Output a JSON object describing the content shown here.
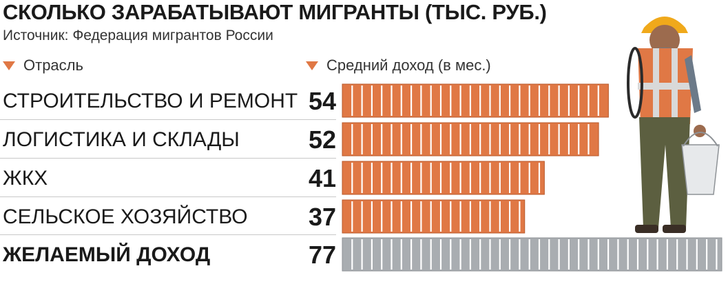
{
  "title": "СКОЛЬКО ЗАРАБАТЫВАЮТ МИГРАНТЫ (ТЫС. РУБ.)",
  "subtitle": "Источник: Федерация мигрантов России",
  "headers": {
    "category": "Отрасль",
    "value": "Средний доход (в мес.)"
  },
  "colors": {
    "bar": "#e07845",
    "bar_highlight": "#a9adb1",
    "accent": "#e07845"
  },
  "icons": {
    "header_marker": "triangle-down-icon",
    "illustration": "construction-worker-icon"
  },
  "chart_data": {
    "type": "bar",
    "orientation": "horizontal",
    "title": "СКОЛЬКО ЗАРАБАТЫВАЮТ МИГРАНТЫ (ТЫС. РУБ.)",
    "categories": [
      "СТРОИТЕЛЬСТВО И РЕМОНТ",
      "ЛОГИСТИКА И СКЛАДЫ",
      "ЖКХ",
      "СЕЛЬСКОЕ ХОЗЯЙСТВО",
      "ЖЕЛАЕМЫЙ ДОХОД"
    ],
    "values": [
      54,
      52,
      41,
      37,
      77
    ],
    "value_labels": [
      "54",
      "52",
      "41",
      "37",
      "77"
    ],
    "highlight": [
      false,
      false,
      false,
      false,
      true
    ],
    "xlim": [
      0,
      77
    ],
    "grid": false,
    "legend": "none"
  }
}
